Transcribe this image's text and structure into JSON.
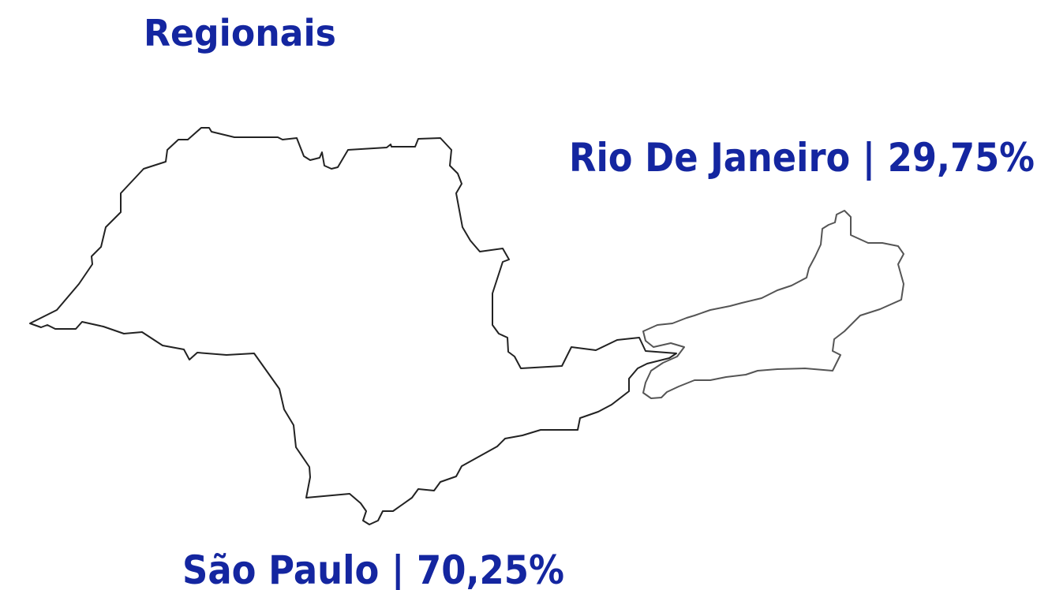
{
  "title": "Regionais",
  "regions": [
    {
      "label": "Rio De Janeiro | 29,75%"
    },
    {
      "label": "São Paulo | 70,25%"
    }
  ]
}
